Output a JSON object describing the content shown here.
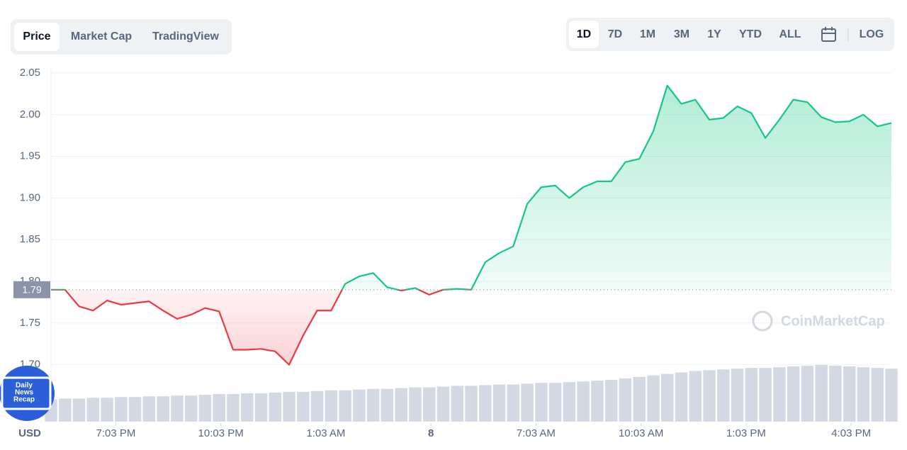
{
  "chart_data": {
    "type": "line",
    "tabs": [
      "Price",
      "Market Cap",
      "TradingView"
    ],
    "ranges": [
      "1D",
      "7D",
      "1M",
      "3M",
      "1Y",
      "YTD",
      "ALL"
    ],
    "log": "LOG",
    "currency": "USD",
    "watermark": "CoinMarketCap",
    "badge": [
      "Daily",
      "News",
      "Recap"
    ],
    "reference": {
      "value": 1.79
    },
    "x": [
      17.2,
      17.6,
      18,
      18.4,
      18.8,
      19.2,
      19.6,
      20,
      20.4,
      20.8,
      21.2,
      21.6,
      22,
      22.4,
      22.8,
      23.2,
      23.6,
      24,
      24.4,
      24.8,
      25.2,
      25.6,
      26,
      26.4,
      26.8,
      27.2,
      27.6,
      28,
      28.4,
      28.8,
      29.2,
      29.6,
      30,
      30.4,
      30.8,
      31.2,
      31.6,
      32,
      32.4,
      32.8,
      33.2,
      33.6,
      34,
      34.4,
      34.8,
      35.2,
      35.6,
      36,
      36.4,
      36.8,
      37.2,
      37.6,
      38,
      38.4,
      38.8,
      39.2,
      39.6,
      40,
      40.4,
      40.8,
      41.2
    ],
    "values": [
      1.79,
      1.79,
      1.77,
      1.765,
      1.777,
      1.772,
      1.774,
      1.776,
      1.765,
      1.755,
      1.76,
      1.768,
      1.764,
      1.718,
      1.718,
      1.719,
      1.716,
      1.7,
      1.735,
      1.765,
      1.765,
      1.797,
      1.806,
      1.81,
      1.793,
      1.789,
      1.792,
      1.784,
      1.79,
      1.791,
      1.79,
      1.823,
      1.834,
      1.842,
      1.893,
      1.913,
      1.915,
      1.9,
      1.913,
      1.92,
      1.92,
      1.943,
      1.947,
      1.98,
      2.035,
      2.013,
      2.018,
      1.994,
      1.996,
      2.01,
      2.002,
      1.972,
      1.994,
      2.018,
      2.015,
      1.997,
      1.991,
      1.992,
      2.0,
      1.986,
      1.99
    ],
    "up_color": "#16c784",
    "down_color": "#ea3943",
    "volume": {
      "color": "#d3d9e3",
      "values": [
        30,
        31,
        31,
        32,
        32,
        33,
        33,
        34,
        34,
        35,
        35,
        36,
        37,
        37,
        38,
        38,
        39,
        40,
        40,
        41,
        42,
        42,
        43,
        44,
        44,
        45,
        46,
        46,
        47,
        48,
        48,
        49,
        50,
        50,
        51,
        52,
        52,
        53,
        54,
        55,
        56,
        58,
        60,
        62,
        64,
        66,
        68,
        69,
        70,
        71,
        72,
        72,
        73,
        74,
        75,
        76,
        75,
        74,
        73,
        72,
        71
      ]
    },
    "xlim": [
      17.2,
      41.2
    ],
    "xticks": [
      {
        "value": 19.05,
        "label": "7:03 PM"
      },
      {
        "value": 22.05,
        "label": "10:03 PM"
      },
      {
        "value": 25.05,
        "label": "1:03 AM"
      },
      {
        "value": 28.05,
        "label": "8"
      },
      {
        "value": 31.05,
        "label": "7:03 AM"
      },
      {
        "value": 34.05,
        "label": "10:03 AM"
      },
      {
        "value": 37.05,
        "label": "1:03 PM"
      },
      {
        "value": 40.05,
        "label": "4:03 PM"
      }
    ],
    "ylim": [
      1.63,
      2.05
    ],
    "yticks": [
      {
        "value": 1.7,
        "label": "1.70"
      },
      1.75,
      {
        "value": 1.8,
        "label": "1.80"
      },
      1.85,
      {
        "value": 1.9,
        "label": "1.90"
      },
      1.95,
      {
        "value": 2.0,
        "label": "2.00"
      },
      2.05
    ],
    "grid": true
  }
}
